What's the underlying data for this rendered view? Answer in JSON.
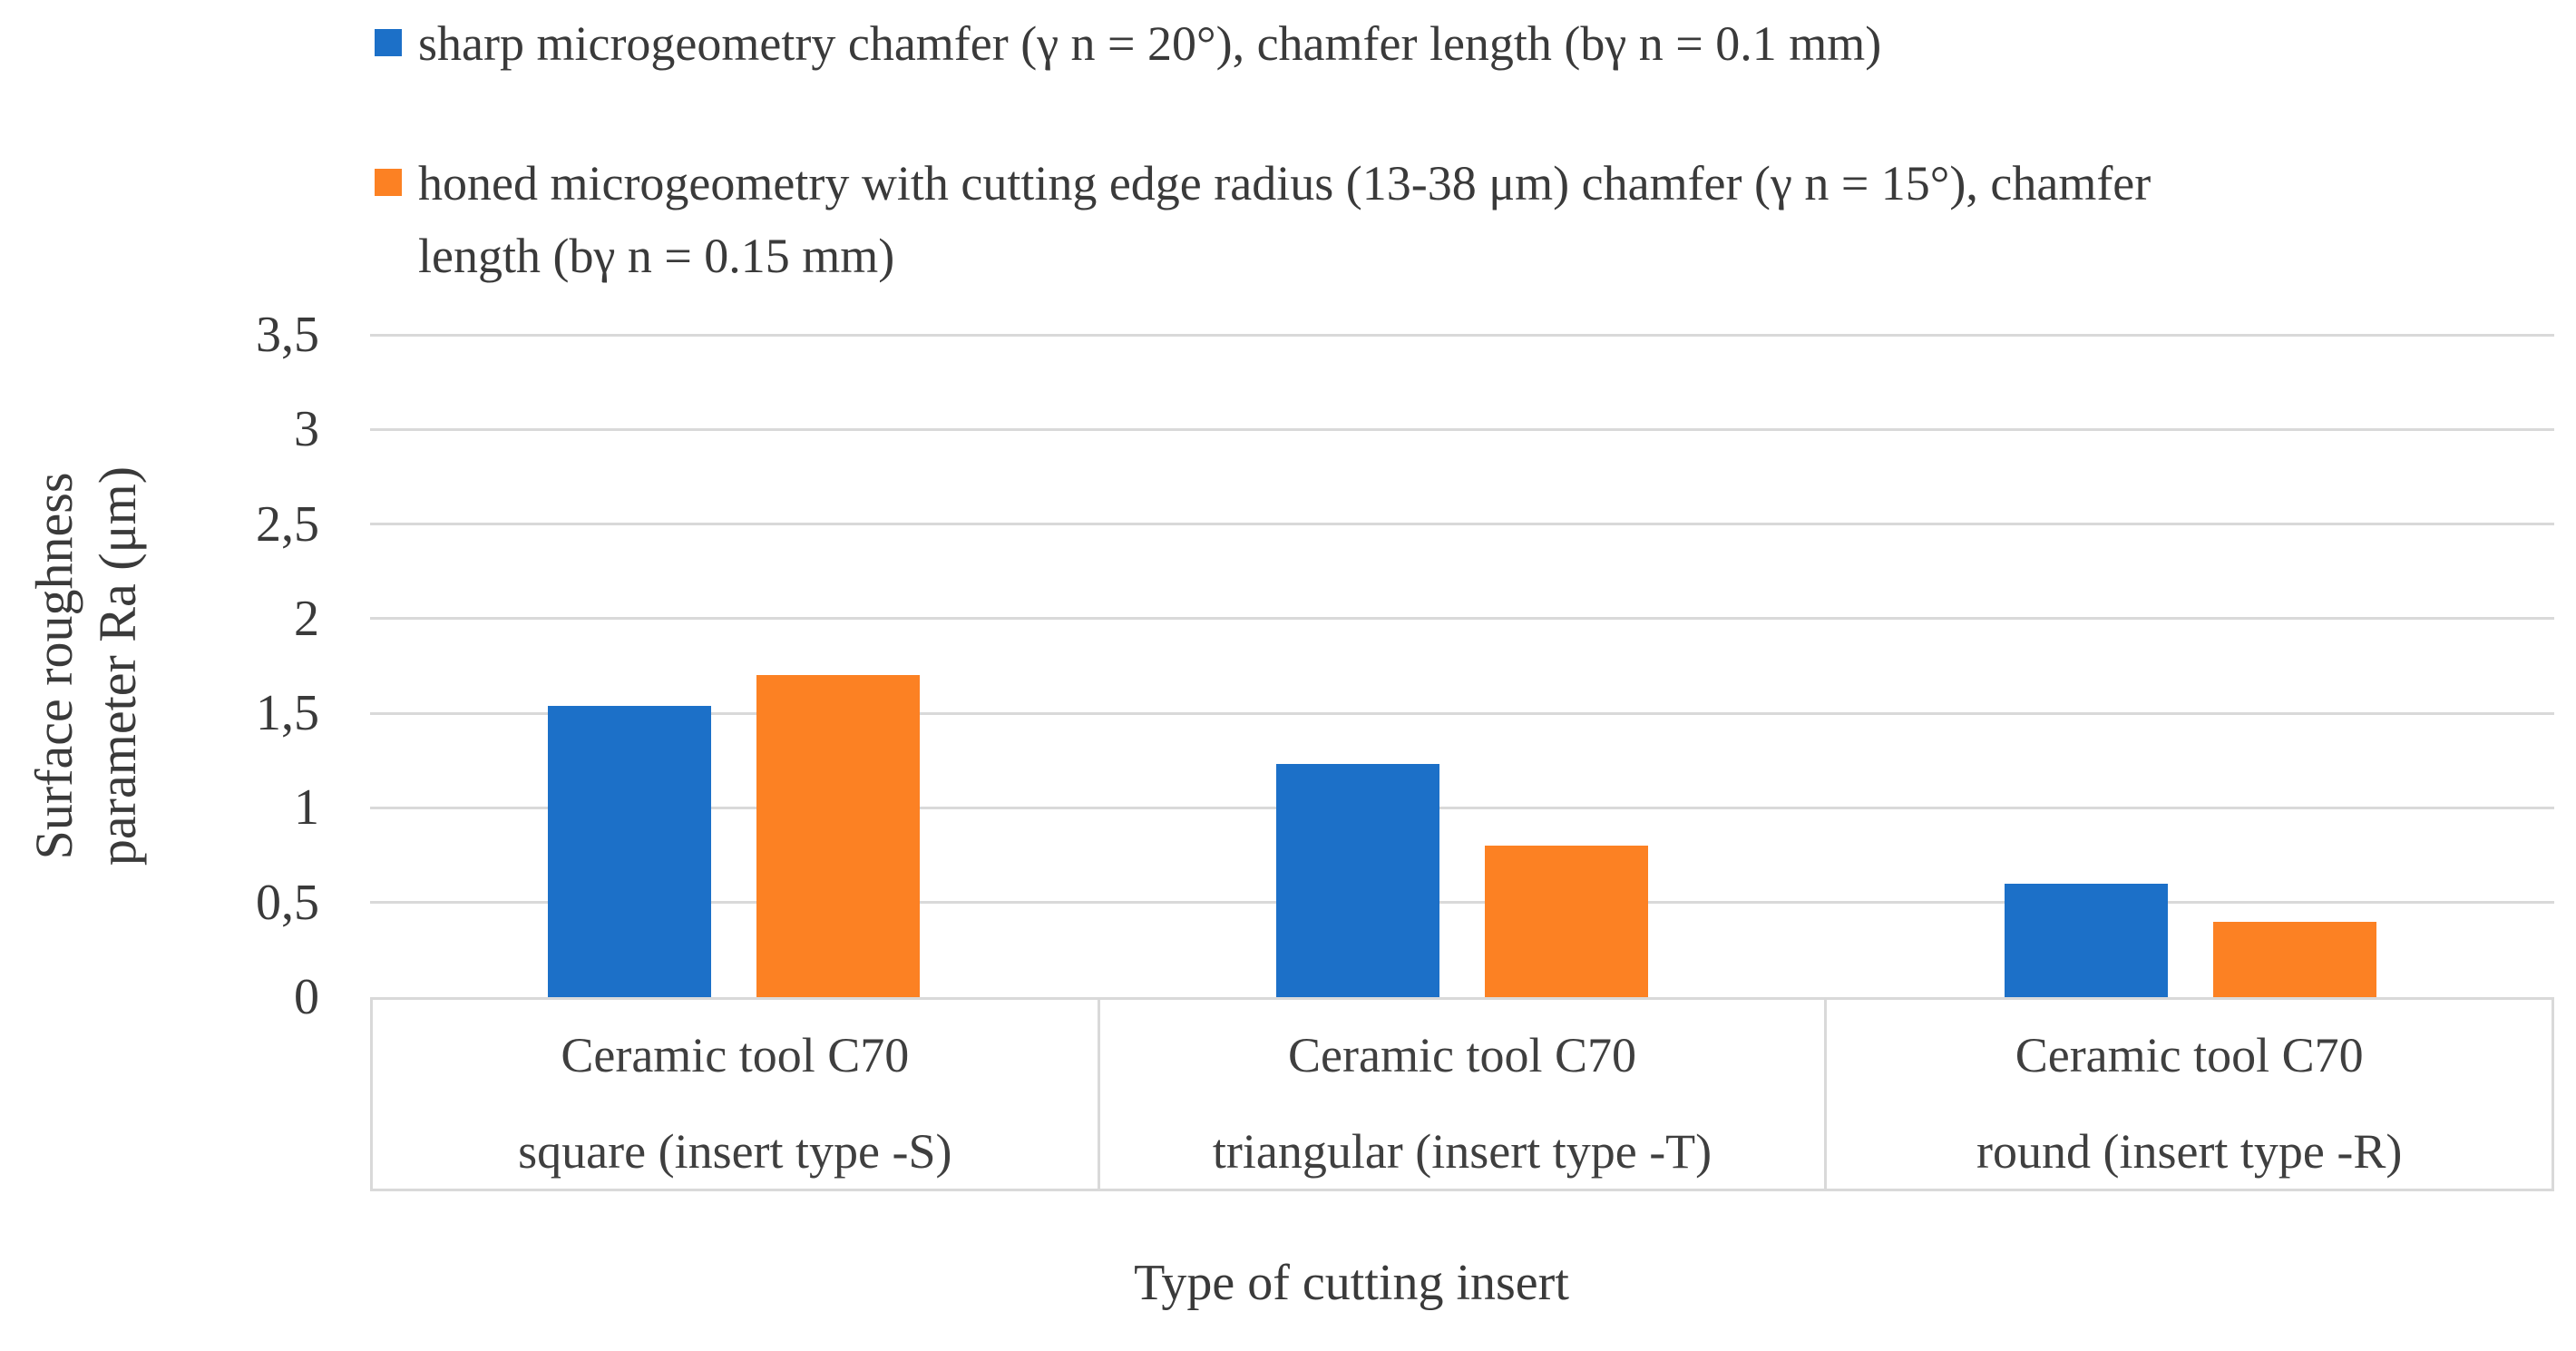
{
  "figure": {
    "background": "#FFFFFF",
    "text_color": "#3A3A3A",
    "gridline_color": "#D9D9D9"
  },
  "legend": {
    "position": "top-left",
    "items": [
      {
        "series_key": "sharp",
        "label": "sharp microgeometry chamfer (γ n = 20°), chamfer length (bγ n = 0.1 mm)",
        "label_lines": [
          "sharp microgeometry chamfer (γ n = 20°), chamfer length (bγ n = 0.1 mm)"
        ],
        "color": "#1C70C8"
      },
      {
        "series_key": "honed",
        "label": "honed microgeometry with cutting edge radius (13-38 μm) chamfer (γ n = 15°), chamfer length (bγ n = 0.15 mm)",
        "label_lines": [
          "honed microgeometry with cutting edge radius (13-38 μm) chamfer (γ n = 15°), chamfer",
          "length (bγ n = 0.15 mm)"
        ],
        "color": "#FC8123"
      }
    ]
  },
  "chart_data": {
    "type": "bar",
    "title": "",
    "categories": [
      {
        "line1": "Ceramic tool C70",
        "line2": "square (insert type -S)"
      },
      {
        "line1": "Ceramic tool C70",
        "line2": "triangular (insert type -T)"
      },
      {
        "line1": "Ceramic tool C70",
        "line2": "round (insert type -R)"
      }
    ],
    "series": [
      {
        "name": "sharp microgeometry chamfer (γ n = 20°), chamfer length (bγ n = 0.1 mm)",
        "color": "#1C70C8",
        "values": [
          1.54,
          1.23,
          0.6
        ]
      },
      {
        "name": "honed microgeometry with cutting edge radius (13-38 μm) chamfer (γ n = 15°), chamfer length (bγ n = 0.15 mm)",
        "color": "#FC8123",
        "values": [
          1.7,
          0.8,
          0.4
        ]
      }
    ],
    "xlabel": "Type of cutting insert",
    "ylabel": "Surface roughness parameter Ra (μm)",
    "ylabel_lines": [
      "Surface roughness",
      "parameter Ra (μm)"
    ],
    "yticks": [
      "3,5",
      "3",
      "2,5",
      "2",
      "1,5",
      "1",
      "0,5",
      "0"
    ],
    "ylim": [
      0,
      3.5
    ],
    "grid": true,
    "legend_position": "top-left"
  }
}
